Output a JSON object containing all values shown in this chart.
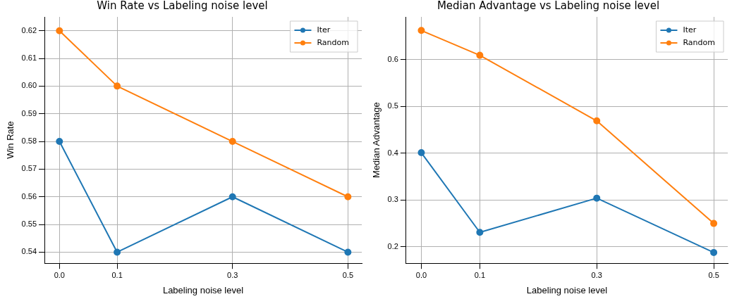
{
  "chart_data": [
    {
      "type": "line",
      "title": "Win Rate vs Labeling noise level",
      "xlabel": "Labeling noise level",
      "ylabel": "Win Rate",
      "x": [
        0.0,
        0.1,
        0.3,
        0.5
      ],
      "series": [
        {
          "name": "Iter",
          "color": "#1f77b4",
          "values": [
            0.58,
            0.54,
            0.56,
            0.54
          ]
        },
        {
          "name": "Random",
          "color": "#ff7f0e",
          "values": [
            0.62,
            0.6,
            0.58,
            0.56
          ]
        }
      ],
      "xlim": [
        -0.026,
        0.524
      ],
      "xticks": [
        {
          "value": 0,
          "label": "0.0"
        },
        0.1,
        0.3,
        0.5
      ],
      "ylim": [
        0.536,
        0.625
      ],
      "yticks": [
        0.54,
        0.55,
        0.56,
        0.57,
        0.58,
        0.59,
        {
          "value": 0.6,
          "label": "0.60"
        },
        0.61,
        0.62
      ],
      "grid": true,
      "legend": "top right",
      "marker": "circle",
      "line_style": "solid"
    },
    {
      "type": "line",
      "title": "Median Advantage vs Labeling noise level",
      "xlabel": "Labeling noise level",
      "ylabel": "Median Advantage",
      "x": [
        0.0,
        0.1,
        0.3,
        0.5
      ],
      "series": [
        {
          "name": "Iter",
          "color": "#1f77b4",
          "values": [
            0.401,
            0.231,
            0.304,
            0.188
          ]
        },
        {
          "name": "Random",
          "color": "#ff7f0e",
          "values": [
            0.662,
            0.609,
            0.469,
            0.25
          ]
        }
      ],
      "xlim": [
        -0.026,
        0.524
      ],
      "xticks": [
        {
          "value": 0,
          "label": "0.0"
        },
        0.1,
        0.3,
        0.5
      ],
      "ylim": [
        0.165,
        0.691
      ],
      "yticks": [
        0.2,
        0.3,
        0.4,
        0.5,
        0.6
      ],
      "grid": true,
      "legend": "top right",
      "marker": "circle",
      "line_style": "solid"
    }
  ]
}
